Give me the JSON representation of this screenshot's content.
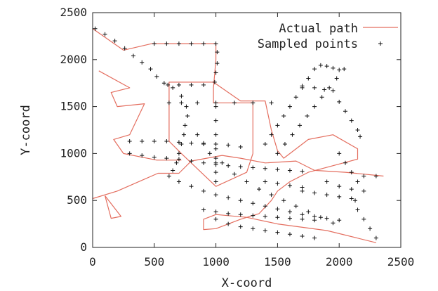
{
  "chart_data": {
    "type": "scatter",
    "title": "",
    "xlabel": "X-coord",
    "ylabel": "Y-coord",
    "xlim": [
      0,
      2500
    ],
    "ylim": [
      0,
      2500
    ],
    "x_ticks": [
      0,
      500,
      1000,
      1500,
      2000,
      2500
    ],
    "y_ticks": [
      0,
      500,
      1000,
      1500,
      2000,
      2500
    ],
    "x_tick_labels": [
      "0",
      "500",
      "1000",
      "1500",
      "2000",
      "2500"
    ],
    "y_tick_labels": [
      "0",
      "500",
      "1000",
      "1500",
      "2000",
      "2500"
    ],
    "grid": false,
    "legend_position": "top-right",
    "colors": {
      "actual_path": "#e46e5f",
      "sampled_points": "#111111",
      "axis": "#222222"
    },
    "series": [
      {
        "name": "Actual path",
        "type": "line",
        "color": "#e46e5f",
        "points": [
          [
            0,
            2330
          ],
          [
            250,
            2100
          ],
          [
            480,
            2170
          ],
          [
            1000,
            2170
          ],
          [
            1000,
            2000
          ],
          [
            980,
            1700
          ],
          [
            980,
            1540
          ],
          [
            1300,
            1540
          ],
          [
            1300,
            1000
          ],
          [
            1250,
            800
          ],
          [
            1000,
            650
          ],
          [
            720,
            1000
          ],
          [
            620,
            1130
          ],
          [
            620,
            1760
          ],
          [
            980,
            1760
          ],
          [
            1200,
            1560
          ],
          [
            1400,
            1560
          ],
          [
            1450,
            1250
          ],
          [
            1500,
            1030
          ],
          [
            1550,
            950
          ],
          [
            1750,
            1150
          ],
          [
            1950,
            1200
          ],
          [
            2150,
            1050
          ],
          [
            2150,
            940
          ],
          [
            1750,
            800
          ],
          [
            1600,
            700
          ],
          [
            1500,
            600
          ],
          [
            1450,
            500
          ],
          [
            1350,
            360
          ],
          [
            1200,
            300
          ],
          [
            1000,
            200
          ],
          [
            900,
            190
          ],
          [
            900,
            300
          ],
          [
            1000,
            350
          ],
          [
            1250,
            320
          ],
          [
            1500,
            250
          ],
          [
            1900,
            180
          ],
          [
            2300,
            50
          ]
        ]
      },
      {
        "name": "Actual path",
        "type": "line",
        "color": "#e46e5f",
        "points": [
          [
            0,
            520
          ],
          [
            200,
            600
          ],
          [
            530,
            790
          ],
          [
            700,
            790
          ],
          [
            800,
            920
          ],
          [
            1050,
            980
          ],
          [
            1200,
            950
          ],
          [
            1400,
            900
          ],
          [
            1650,
            920
          ],
          [
            1800,
            820
          ],
          [
            2050,
            800
          ],
          [
            2360,
            760
          ]
        ]
      },
      {
        "name": "Actual path",
        "type": "line",
        "color": "#e46e5f",
        "points": [
          [
            50,
            1880
          ],
          [
            300,
            1700
          ],
          [
            150,
            1650
          ],
          [
            200,
            1500
          ],
          [
            420,
            1530
          ],
          [
            300,
            1200
          ],
          [
            170,
            1150
          ],
          [
            250,
            1000
          ],
          [
            520,
            930
          ],
          [
            720,
            930
          ]
        ]
      },
      {
        "name": "Actual path",
        "type": "line",
        "color": "#e46e5f",
        "points": [
          [
            100,
            550
          ],
          [
            230,
            330
          ],
          [
            150,
            310
          ],
          [
            100,
            550
          ]
        ]
      },
      {
        "name": "Sampled points",
        "type": "scatter",
        "marker": "+",
        "color": "#111111",
        "points": [
          [
            20,
            2330
          ],
          [
            100,
            2270
          ],
          [
            180,
            2200
          ],
          [
            260,
            2120
          ],
          [
            330,
            2040
          ],
          [
            400,
            1970
          ],
          [
            470,
            1900
          ],
          [
            520,
            1820
          ],
          [
            580,
            1750
          ],
          [
            650,
            1700
          ],
          [
            720,
            1610
          ],
          [
            760,
            1500
          ],
          [
            770,
            1400
          ],
          [
            750,
            1300
          ],
          [
            740,
            1200
          ],
          [
            720,
            1100
          ],
          [
            700,
            1000
          ],
          [
            680,
            900
          ],
          [
            650,
            820
          ],
          [
            620,
            760
          ],
          [
            500,
            2170
          ],
          [
            600,
            2170
          ],
          [
            700,
            2170
          ],
          [
            800,
            2170
          ],
          [
            900,
            2170
          ],
          [
            1000,
            2170
          ],
          [
            1010,
            2080
          ],
          [
            1010,
            1960
          ],
          [
            1000,
            1860
          ],
          [
            990,
            1760
          ],
          [
            900,
            1730
          ],
          [
            800,
            1730
          ],
          [
            700,
            1730
          ],
          [
            610,
            1730
          ],
          [
            620,
            1540
          ],
          [
            720,
            1540
          ],
          [
            850,
            1540
          ],
          [
            1000,
            1540
          ],
          [
            1150,
            1540
          ],
          [
            1300,
            1540
          ],
          [
            1450,
            1540
          ],
          [
            1000,
            1500
          ],
          [
            1000,
            1350
          ],
          [
            1000,
            1200
          ],
          [
            1000,
            1050
          ],
          [
            1000,
            900
          ],
          [
            1000,
            800
          ],
          [
            1000,
            700
          ],
          [
            300,
            1130
          ],
          [
            400,
            1130
          ],
          [
            500,
            1130
          ],
          [
            600,
            1130
          ],
          [
            700,
            1120
          ],
          [
            800,
            1110
          ],
          [
            900,
            1110
          ],
          [
            1000,
            1100
          ],
          [
            1100,
            1090
          ],
          [
            1200,
            1070
          ],
          [
            300,
            1000
          ],
          [
            400,
            980
          ],
          [
            500,
            960
          ],
          [
            600,
            950
          ],
          [
            700,
            940
          ],
          [
            800,
            920
          ],
          [
            900,
            900
          ],
          [
            1000,
            880
          ],
          [
            1100,
            870
          ],
          [
            1200,
            860
          ],
          [
            1300,
            850
          ],
          [
            1400,
            840
          ],
          [
            1500,
            830
          ],
          [
            1600,
            820
          ],
          [
            1700,
            810
          ],
          [
            850,
            1200
          ],
          [
            900,
            1100
          ],
          [
            950,
            1000
          ],
          [
            1000,
            950
          ],
          [
            1050,
            900
          ],
          [
            1150,
            780
          ],
          [
            1250,
            700
          ],
          [
            1350,
            620
          ],
          [
            1450,
            560
          ],
          [
            1550,
            500
          ],
          [
            1650,
            440
          ],
          [
            1750,
            380
          ],
          [
            1850,
            320
          ],
          [
            1950,
            260
          ],
          [
            700,
            700
          ],
          [
            800,
            650
          ],
          [
            900,
            600
          ],
          [
            1000,
            560
          ],
          [
            1100,
            530
          ],
          [
            1200,
            500
          ],
          [
            1300,
            470
          ],
          [
            1400,
            440
          ],
          [
            1500,
            410
          ],
          [
            1600,
            380
          ],
          [
            1700,
            350
          ],
          [
            1800,
            330
          ],
          [
            1900,
            310
          ],
          [
            2000,
            290
          ],
          [
            900,
            400
          ],
          [
            1000,
            380
          ],
          [
            1100,
            360
          ],
          [
            1200,
            350
          ],
          [
            1300,
            340
          ],
          [
            1400,
            330
          ],
          [
            1500,
            320
          ],
          [
            1600,
            310
          ],
          [
            1700,
            300
          ],
          [
            1800,
            290
          ],
          [
            1000,
            300
          ],
          [
            1100,
            250
          ],
          [
            1200,
            220
          ],
          [
            1300,
            200
          ],
          [
            1400,
            180
          ],
          [
            1500,
            160
          ],
          [
            1600,
            140
          ],
          [
            1700,
            120
          ],
          [
            1800,
            100
          ],
          [
            1500,
            1000
          ],
          [
            1560,
            1100
          ],
          [
            1620,
            1200
          ],
          [
            1680,
            1300
          ],
          [
            1740,
            1400
          ],
          [
            1800,
            1500
          ],
          [
            1860,
            1600
          ],
          [
            1920,
            1700
          ],
          [
            1980,
            1800
          ],
          [
            2040,
            1900
          ],
          [
            1400,
            1100
          ],
          [
            1450,
            1200
          ],
          [
            1500,
            1300
          ],
          [
            1550,
            1400
          ],
          [
            1600,
            1500
          ],
          [
            1650,
            1600
          ],
          [
            1700,
            1700
          ],
          [
            1750,
            1800
          ],
          [
            1800,
            1900
          ],
          [
            1850,
            1940
          ],
          [
            1900,
            1930
          ],
          [
            1950,
            1910
          ],
          [
            2000,
            1890
          ],
          [
            1700,
            1720
          ],
          [
            1800,
            1700
          ],
          [
            1880,
            1680
          ],
          [
            1950,
            1670
          ],
          [
            2000,
            1550
          ],
          [
            2050,
            1450
          ],
          [
            2100,
            1350
          ],
          [
            2150,
            1250
          ],
          [
            2170,
            1180
          ],
          [
            2000,
            1000
          ],
          [
            2050,
            900
          ],
          [
            2100,
            800
          ],
          [
            2150,
            700
          ],
          [
            2200,
            600
          ],
          [
            2130,
            500
          ],
          [
            2150,
            400
          ],
          [
            2200,
            300
          ],
          [
            2250,
            200
          ],
          [
            2300,
            100
          ],
          [
            2200,
            760
          ],
          [
            2300,
            760
          ],
          [
            1900,
            700
          ],
          [
            2000,
            650
          ],
          [
            2100,
            620
          ],
          [
            1700,
            600
          ],
          [
            1800,
            580
          ],
          [
            1900,
            560
          ],
          [
            2000,
            540
          ],
          [
            2100,
            520
          ],
          [
            1400,
            700
          ],
          [
            1500,
            680
          ],
          [
            1600,
            660
          ],
          [
            1700,
            640
          ]
        ]
      }
    ]
  }
}
